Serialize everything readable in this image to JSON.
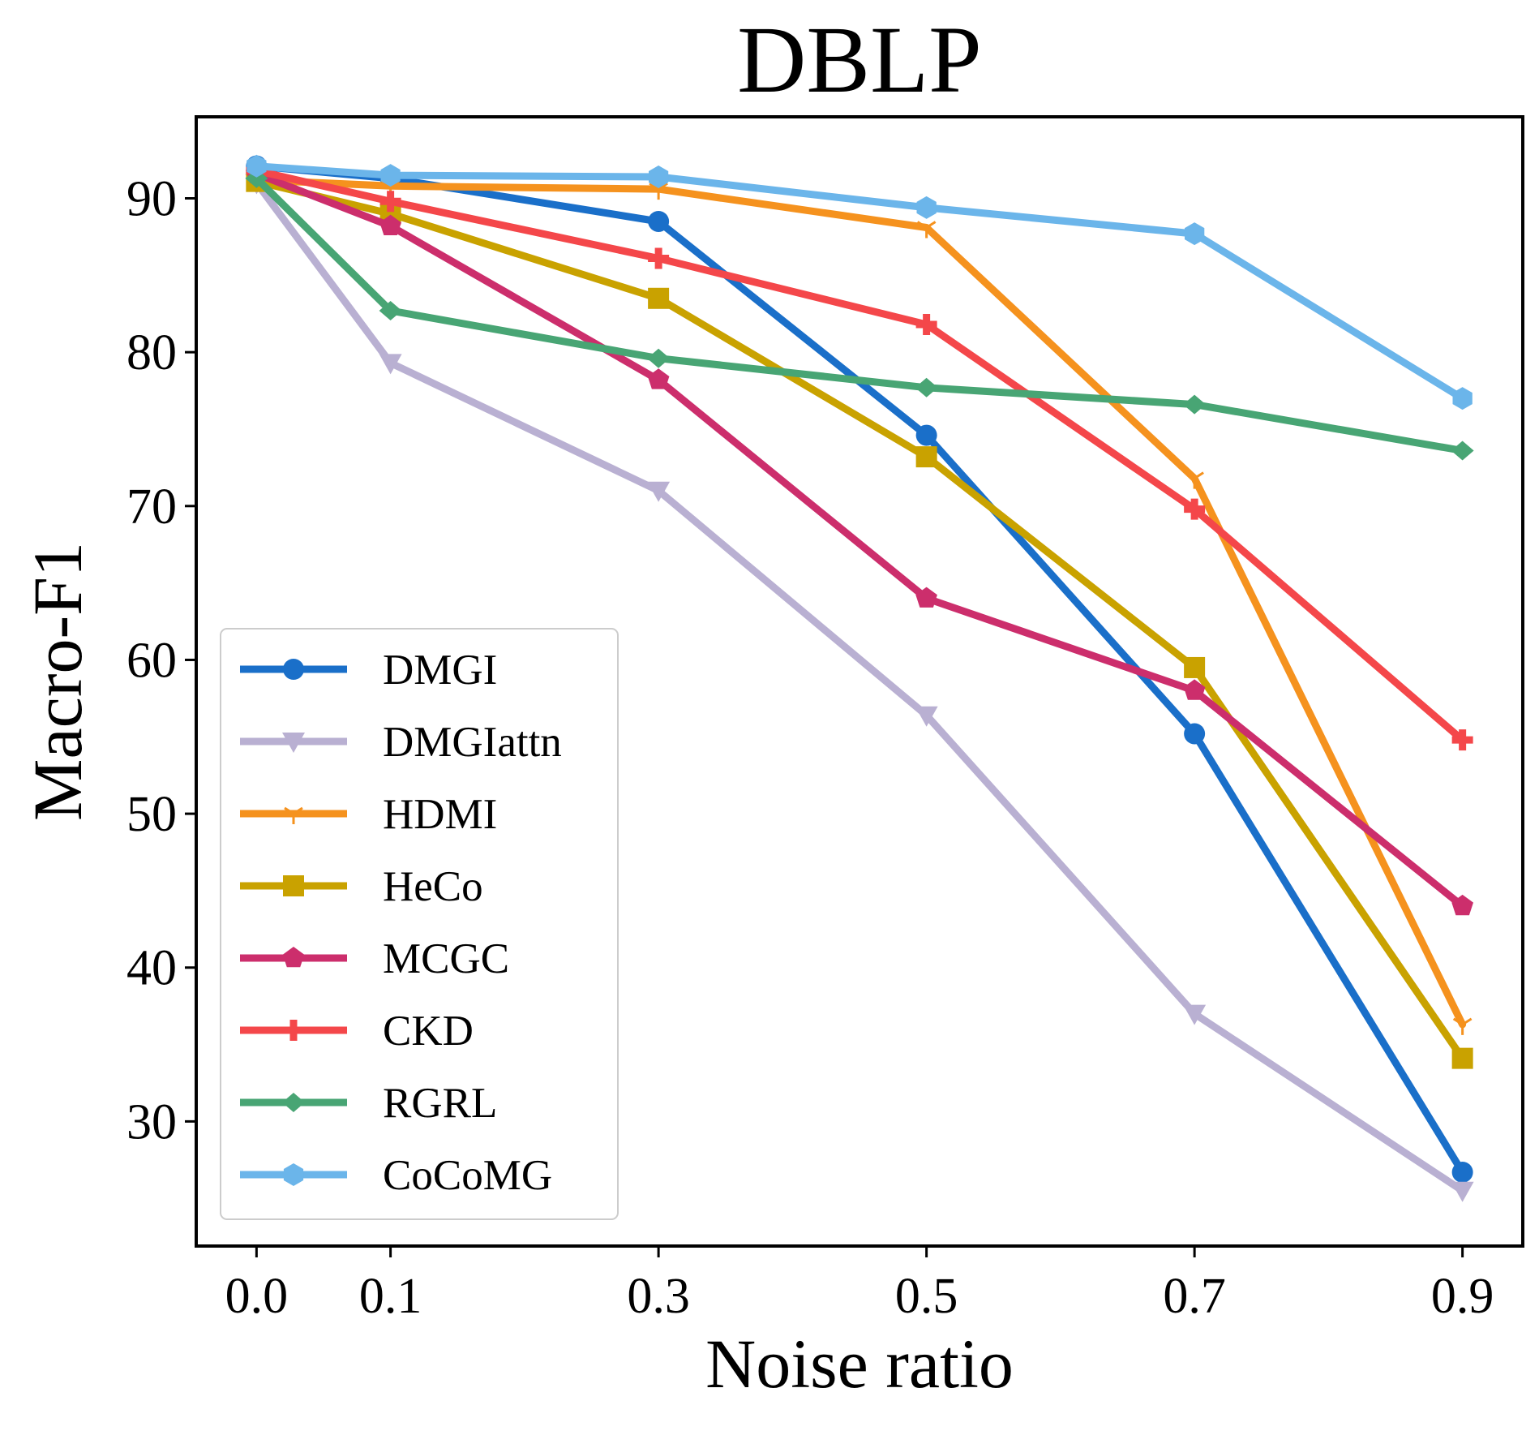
{
  "chart_data": {
    "type": "line",
    "title": "DBLP",
    "xlabel": "Noise ratio",
    "ylabel": "Macro-F1",
    "x": [
      0.0,
      0.1,
      0.3,
      0.5,
      0.7,
      0.9
    ],
    "x_tick_labels": [
      "0.0",
      "0.1",
      "0.3",
      "0.5",
      "0.7",
      "0.9"
    ],
    "y_ticks": [
      30,
      40,
      50,
      60,
      70,
      80,
      90
    ],
    "y_tick_labels": [
      "30",
      "40",
      "50",
      "60",
      "70",
      "80",
      "90"
    ],
    "xlim": [
      -0.045,
      0.945
    ],
    "ylim": [
      21.9,
      95.3
    ],
    "grid": false,
    "legend_position": "lower-left",
    "series": [
      {
        "name": "DMGI",
        "color": "#1a6fc9",
        "marker": "circle",
        "values": [
          92.1,
          91.3,
          88.5,
          74.6,
          55.2,
          26.7
        ]
      },
      {
        "name": "DMGIattn",
        "color": "#b9b0d2",
        "marker": "triangle-down",
        "values": [
          91.0,
          79.3,
          71.0,
          56.4,
          37.0,
          25.5
        ]
      },
      {
        "name": "HDMI",
        "color": "#f5921e",
        "marker": "tri-down",
        "values": [
          91.2,
          90.8,
          90.6,
          88.1,
          71.8,
          36.3
        ]
      },
      {
        "name": "HeCo",
        "color": "#c9a200",
        "marker": "square",
        "values": [
          91.1,
          89.0,
          83.5,
          73.2,
          59.5,
          34.1
        ]
      },
      {
        "name": "MCGC",
        "color": "#cc2e6c",
        "marker": "pentagon",
        "values": [
          91.6,
          88.2,
          78.2,
          64.0,
          58.0,
          44.0
        ]
      },
      {
        "name": "CKD",
        "color": "#f4474a",
        "marker": "plus",
        "values": [
          91.8,
          89.8,
          86.1,
          81.8,
          69.8,
          54.8
        ]
      },
      {
        "name": "RGRL",
        "color": "#48a574",
        "marker": "diamond",
        "values": [
          91.3,
          82.7,
          79.6,
          77.7,
          76.6,
          73.6
        ]
      },
      {
        "name": "CoCoMG",
        "color": "#6bb5ea",
        "marker": "hexagon",
        "values": [
          92.1,
          91.5,
          91.4,
          89.4,
          87.7,
          77.0
        ]
      }
    ]
  }
}
